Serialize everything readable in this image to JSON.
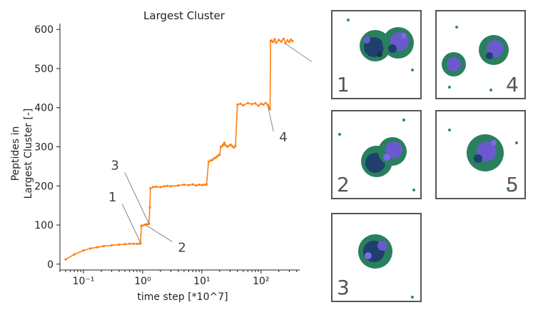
{
  "chart_data": {
    "type": "line",
    "title": "Largest Cluster",
    "xlabel": "time step [*10^7]",
    "ylabel_lines": [
      "Peptides in",
      "Largest Cluster [-]"
    ],
    "xscale": "log",
    "xlim": [
      0.04,
      450
    ],
    "ylim": [
      -15,
      615
    ],
    "xticks": [
      {
        "value": 0.1,
        "label": "10⁻¹"
      },
      {
        "value": 1,
        "label": "10⁰"
      },
      {
        "value": 10,
        "label": "10¹"
      },
      {
        "value": 100,
        "label": "10²"
      }
    ],
    "yticks": [
      0,
      100,
      200,
      300,
      400,
      500,
      600
    ],
    "grid": false,
    "series": [
      {
        "color": "#ff7f0e",
        "x": [
          0.05,
          0.07,
          0.1,
          0.13,
          0.17,
          0.22,
          0.3,
          0.4,
          0.5,
          0.6,
          0.7,
          0.8,
          0.88,
          0.92,
          0.95,
          1.0,
          1.1,
          1.2,
          1.28,
          1.32,
          1.35,
          1.5,
          1.7,
          2.0,
          2.3,
          2.6,
          3,
          4,
          5,
          6,
          7,
          8,
          9,
          10,
          11,
          12,
          13,
          14,
          15,
          16,
          17,
          18,
          19,
          20,
          21,
          22,
          23,
          24,
          25,
          27,
          29,
          31,
          33,
          35,
          37,
          40,
          45,
          50,
          60,
          70,
          80,
          90,
          100,
          110,
          120,
          130,
          138,
          142,
          145,
          150,
          160,
          170,
          180,
          200,
          220,
          240,
          260,
          280,
          300,
          320,
          340
        ],
        "y": [
          12,
          25,
          35,
          40,
          43,
          46,
          48,
          50,
          51,
          52,
          52,
          52,
          52,
          53,
          98,
          99,
          101,
          102,
          103,
          145,
          194,
          197,
          198,
          197,
          199,
          200,
          199,
          201,
          203,
          202,
          204,
          201,
          203,
          202,
          203,
          204,
          262,
          265,
          266,
          270,
          272,
          275,
          278,
          280,
          300,
          302,
          305,
          310,
          304,
          300,
          303,
          305,
          301,
          298,
          302,
          408,
          410,
          406,
          412,
          409,
          411,
          405,
          410,
          408,
          412,
          407,
          400,
          396,
          570,
          572,
          568,
          575,
          566,
          573,
          569,
          576,
          565,
          572,
          568,
          574,
          570
        ]
      }
    ],
    "annotations": [
      {
        "label": "1",
        "x": 0.93,
        "y": 53
      },
      {
        "label": "2",
        "x": 1.1,
        "y": 101
      },
      {
        "label": "3",
        "x": 1.28,
        "y": 103
      },
      {
        "label": "4",
        "x": 130,
        "y": 405
      },
      {
        "label": "5",
        "x": 250,
        "y": 565
      }
    ]
  },
  "snapshots": [
    {
      "label": "1"
    },
    {
      "label": "2"
    },
    {
      "label": "3"
    },
    {
      "label": "4"
    },
    {
      "label": "5"
    }
  ]
}
